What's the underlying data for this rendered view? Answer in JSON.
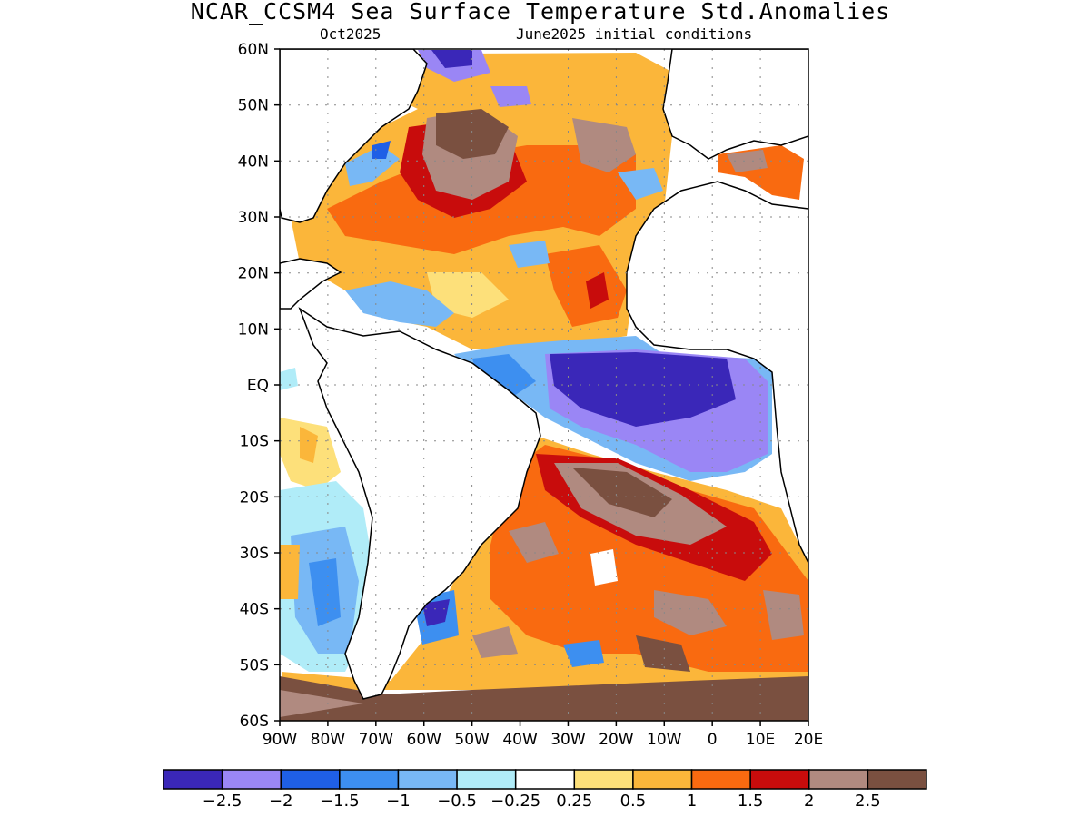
{
  "title": "NCAR_CCSM4 Sea Surface Temperature Std.Anomalies",
  "subtitle_left": "Oct2025",
  "subtitle_right": "June2025 initial conditions",
  "map": {
    "lat_labels": [
      "60N",
      "50N",
      "40N",
      "30N",
      "20N",
      "10N",
      "EQ",
      "10S",
      "20S",
      "30S",
      "40S",
      "50S",
      "60S"
    ],
    "lon_labels": [
      "90W",
      "80W",
      "70W",
      "60W",
      "50W",
      "40W",
      "30W",
      "20W",
      "10W",
      "0",
      "10E",
      "20E"
    ],
    "lat_range": [
      -60,
      60
    ],
    "lon_range": [
      -90,
      20
    ],
    "grid": "dotted"
  },
  "colorbar": {
    "colors": [
      "#3a27b8",
      "#9a86f5",
      "#1f5fe6",
      "#3d8ff0",
      "#78b8f5",
      "#b0ecf8",
      "#ffffff",
      "#fde07a",
      "#fbb63a",
      "#f96a10",
      "#c80c0c",
      "#b08a80",
      "#7a5040"
    ],
    "labels": [
      "−2.5",
      "−2",
      "−1.5",
      "−1",
      "−0.5",
      "−0.25",
      "0.25",
      "0.5",
      "1",
      "1.5",
      "2",
      "2.5"
    ]
  }
}
